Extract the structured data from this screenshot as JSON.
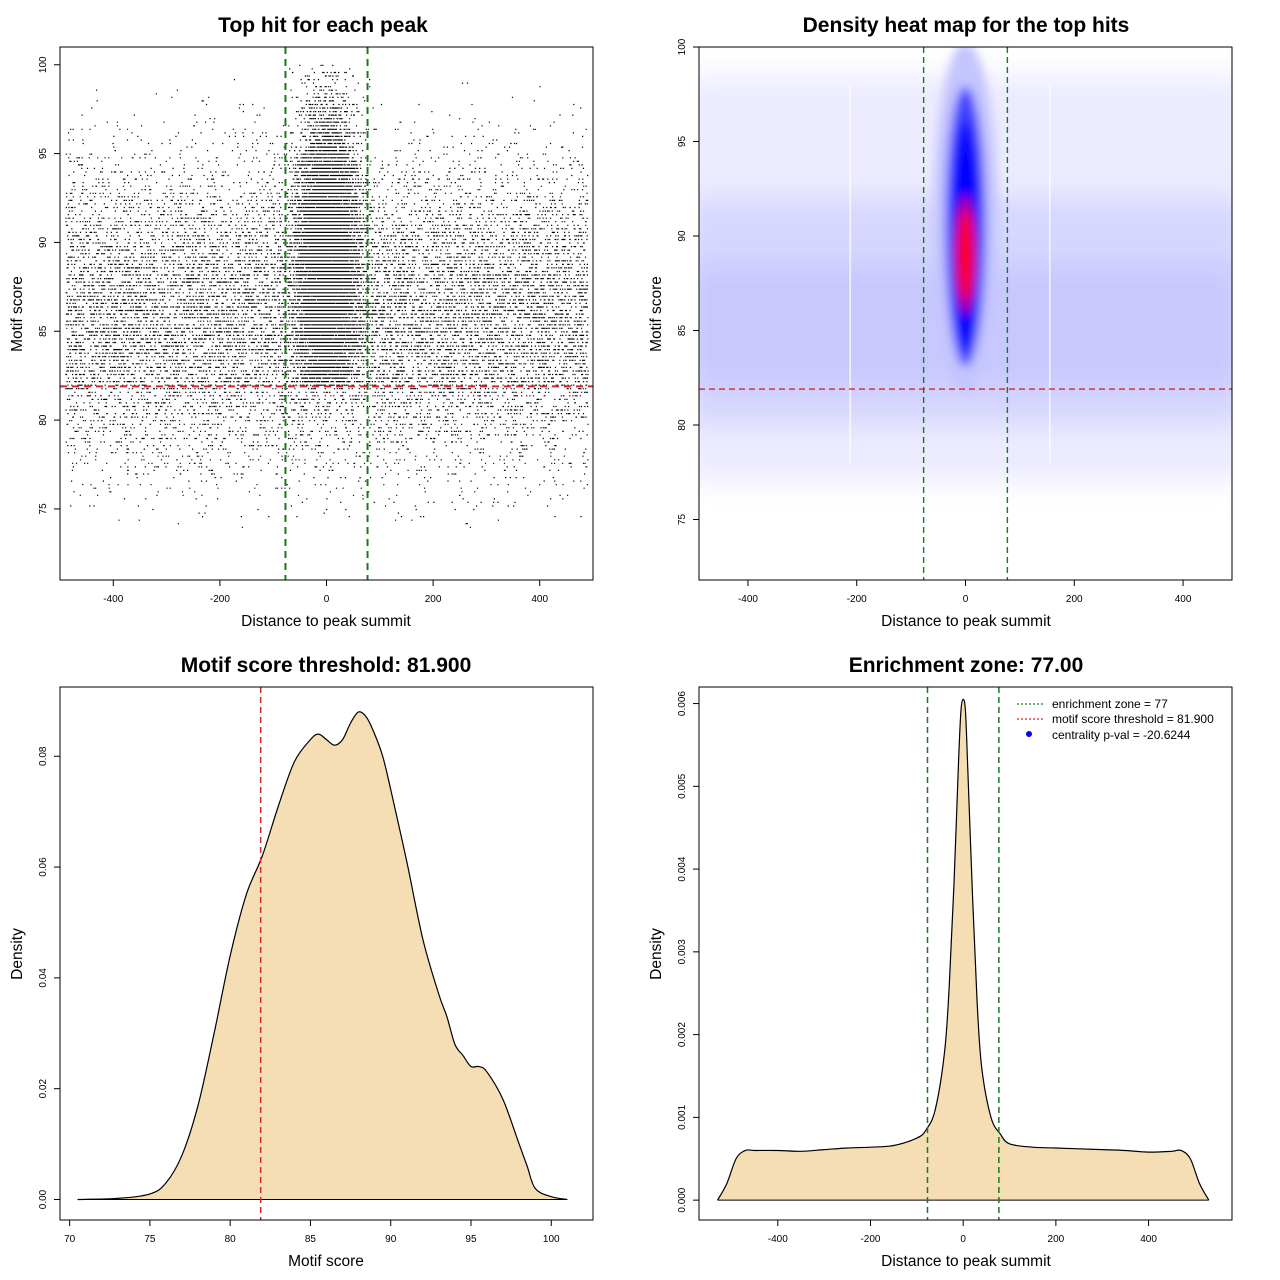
{
  "colors": {
    "threshold": "#d62728",
    "zone": "#1a7a1a",
    "fill": "#f5deb3",
    "hot": "#ff0000",
    "mid": "#0000ff",
    "faint": "#c8c8ff"
  },
  "chart_data": [
    {
      "type": "scatter",
      "title": "Top hit for each peak",
      "xlabel": "Distance to peak summit",
      "ylabel": "Motif score",
      "xlim": [
        -500,
        500
      ],
      "ylim": [
        71,
        101
      ],
      "xticks": [
        "-400",
        "-200",
        "0",
        "200",
        "400"
      ],
      "xtick_values": [
        -400,
        -200,
        0,
        200,
        400
      ],
      "yticks": [
        "75",
        "80",
        "85",
        "90",
        "95",
        "100"
      ],
      "ytick_values": [
        75,
        80,
        85,
        90,
        95,
        100
      ],
      "hlines": [
        {
          "y": 81.9,
          "color": "red",
          "style": "dashed"
        }
      ],
      "vlines": [
        {
          "x": -77,
          "color": "green",
          "style": "dashed"
        },
        {
          "x": 77,
          "color": "green",
          "style": "dashed"
        }
      ],
      "distribution": {
        "background": {
          "x_range": [
            -490,
            490
          ],
          "y_mean": 86,
          "y_sd": 4.3,
          "y_range": [
            74,
            100
          ]
        },
        "central": {
          "x_mean": 0,
          "x_sd": 28,
          "y_mean": 89,
          "y_sd": 4.2,
          "y_range": [
            82,
            100
          ]
        }
      }
    },
    {
      "type": "heatmap",
      "title": "Density heat map for the top hits",
      "xlabel": "Distance to peak summit",
      "ylabel": "Motif score",
      "xlim": [
        -490,
        490
      ],
      "ylim": [
        71.8,
        100
      ],
      "xticks": [
        "-400",
        "-200",
        "0",
        "200",
        "400"
      ],
      "xtick_values": [
        -400,
        -200,
        0,
        200,
        400
      ],
      "yticks": [
        "75",
        "80",
        "85",
        "90",
        "95",
        "100"
      ],
      "ytick_values": [
        75,
        80,
        85,
        90,
        95,
        100
      ],
      "hlines": [
        {
          "y": 81.9,
          "color": "red",
          "style": "dashed"
        }
      ],
      "vlines": [
        {
          "x": -77,
          "color": "green",
          "style": "dashed"
        },
        {
          "x": 77,
          "color": "green",
          "style": "dashed"
        }
      ],
      "density_peak": {
        "x": 0,
        "y": 89
      }
    },
    {
      "type": "area",
      "title": "Motif score threshold: 81.900",
      "xlabel": "Motif score",
      "ylabel": "Density",
      "xlim": [
        69.4,
        102.6
      ],
      "ylim": [
        -0.0037,
        0.0925
      ],
      "xticks": [
        "70",
        "75",
        "80",
        "85",
        "90",
        "95",
        "100"
      ],
      "xtick_values": [
        70,
        75,
        80,
        85,
        90,
        95,
        100
      ],
      "yticks": [
        "0.00",
        "0.02",
        "0.04",
        "0.06",
        "0.08"
      ],
      "ytick_values": [
        0,
        0.02,
        0.04,
        0.06,
        0.08
      ],
      "vlines": [
        {
          "x": 81.9,
          "color": "red",
          "style": "dashed"
        }
      ],
      "x": [
        70.5,
        73,
        75,
        76,
        77,
        78,
        79,
        80,
        81,
        82,
        83,
        84,
        85,
        85.5,
        86,
        86.5,
        87,
        87.5,
        88,
        88.5,
        89,
        89.5,
        90,
        91,
        92,
        93,
        93.5,
        94,
        94.5,
        95,
        95.5,
        96,
        97,
        98,
        98.5,
        99,
        100,
        101
      ],
      "y": [
        0,
        0.0002,
        0.001,
        0.003,
        0.008,
        0.017,
        0.03,
        0.044,
        0.055,
        0.062,
        0.071,
        0.079,
        0.083,
        0.084,
        0.083,
        0.082,
        0.083,
        0.086,
        0.088,
        0.087,
        0.084,
        0.08,
        0.074,
        0.061,
        0.047,
        0.037,
        0.033,
        0.028,
        0.026,
        0.024,
        0.024,
        0.023,
        0.018,
        0.01,
        0.006,
        0.002,
        0.0005,
        0
      ]
    },
    {
      "type": "area",
      "title": "Enrichment zone: 77.00",
      "xlabel": "Distance to peak summit",
      "ylabel": "Density",
      "xlim": [
        -570,
        580
      ],
      "ylim": [
        -0.00024,
        0.0062
      ],
      "xticks": [
        "-400",
        "-200",
        "0",
        "200",
        "400"
      ],
      "xtick_values": [
        -400,
        -200,
        0,
        200,
        400
      ],
      "yticks": [
        "0.000",
        "0.001",
        "0.002",
        "0.003",
        "0.004",
        "0.005",
        "0.006"
      ],
      "ytick_values": [
        0,
        0.001,
        0.002,
        0.003,
        0.004,
        0.005,
        0.006
      ],
      "vlines": [
        {
          "x": -77,
          "color": "green",
          "style": "dashed"
        },
        {
          "x": 77,
          "color": "green",
          "style": "dashed"
        }
      ],
      "x": [
        -530,
        -510,
        -490,
        -470,
        -450,
        -400,
        -350,
        -300,
        -250,
        -200,
        -150,
        -100,
        -80,
        -60,
        -40,
        -30,
        -20,
        -10,
        -5,
        0,
        5,
        10,
        20,
        30,
        40,
        60,
        80,
        100,
        150,
        200,
        250,
        300,
        350,
        400,
        450,
        470,
        490,
        510,
        530
      ],
      "y": [
        0,
        0.0002,
        0.0005,
        0.0006,
        0.0006,
        0.0006,
        0.00059,
        0.00061,
        0.00063,
        0.00064,
        0.00066,
        0.00075,
        0.00085,
        0.0011,
        0.0018,
        0.0026,
        0.0038,
        0.0053,
        0.0059,
        0.00605,
        0.0059,
        0.0052,
        0.0037,
        0.0024,
        0.0016,
        0.001,
        0.0008,
        0.00068,
        0.00064,
        0.00063,
        0.00062,
        0.00061,
        0.0006,
        0.00058,
        0.00059,
        0.0006,
        0.0005,
        0.0002,
        0
      ],
      "legend": {
        "placement": "top-right",
        "entries": [
          {
            "label": "enrichment zone = 77",
            "kind": "dotted",
            "color": "green"
          },
          {
            "label": "motif score threshold = 81.900",
            "kind": "dotted",
            "color": "red"
          },
          {
            "label": "centrality p-val = -20.6244",
            "kind": "point",
            "color": "blue"
          }
        ]
      }
    }
  ]
}
